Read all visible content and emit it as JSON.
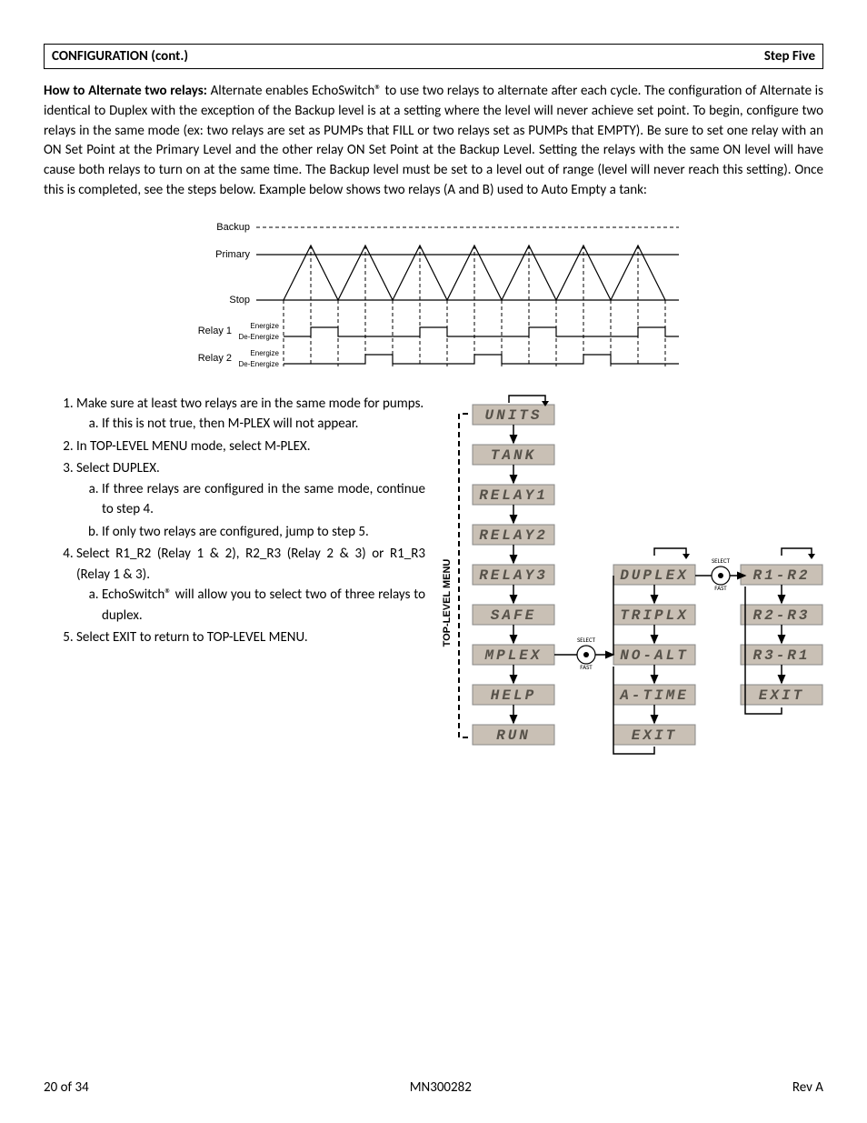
{
  "header": {
    "left": "CONFIGURATION (cont.)",
    "right": "Step Five"
  },
  "intro": {
    "lead": "How to Alternate two relays:",
    "text": "  Alternate enables EchoSwitch® to use two relays to alternate after each cycle. The configuration of Alternate is identical to Duplex with the exception of the Backup level is at a setting where the level will never achieve set point.  To begin, configure two relays in the same mode (ex: two relays are set as PUMPs that FILL or two relays set as PUMPs that EMPTY).  Be sure to set one relay with an ON Set Point at the Primary Level and the other relay ON Set Point at the Backup Level.  Setting the relays with the same ON level will have cause both relays to turn on at the same time.  The Backup level must be set to a level out of range (level will never reach this setting). Once this is completed, see the steps below.  Example below shows two relays (A and B) used to Auto Empty a tank:"
  },
  "timing": {
    "rows": [
      "Backup",
      "Primary",
      "Stop",
      "Relay 1",
      "Relay 2"
    ],
    "sub": [
      "Energize",
      "De-Energize"
    ]
  },
  "steps": {
    "s1": "Make sure at least two relays are in the same mode for pumps.",
    "s1a": "If this is not true, then M-PLEX will not appear.",
    "s2": "In TOP-LEVEL MENU mode, select M-PLEX.",
    "s3": "Select DUPLEX.",
    "s3a": "If three relays are configured in the same mode, continue to step 4.",
    "s3b": "If only two relays are configured, jump to step 5.",
    "s4": "Select R1_R2 (Relay 1 & 2), R2_R3 (Relay 2 & 3) or R1_R3 (Relay 1 & 3).",
    "s4a": "EchoSwitch® will allow you to select two of three relays to duplex.",
    "s5": "Select EXIT to return to TOP-LEVEL MENU."
  },
  "menu": {
    "vlabel": "TOP-LEVEL MENU",
    "col1": [
      "UNITS",
      "TANK",
      "RELAY1",
      "RELAY2",
      "RELAY3",
      "SAFE",
      "MPLEX",
      "HELP",
      "RUN"
    ],
    "col2": [
      "DUPLEX",
      "TRIPLX",
      "NO-ALT",
      "A-TIME",
      "EXIT"
    ],
    "col3": [
      "R1-R2",
      "R2-R3",
      "R3-R1",
      "EXIT"
    ],
    "btn1_label": "SELECT",
    "btn1_sub": "FAST",
    "btn2_label": "SELECT",
    "btn2_sub": "FAST"
  },
  "footer": {
    "left": "20 of 34",
    "center": "MN300282",
    "right": "Rev A"
  }
}
